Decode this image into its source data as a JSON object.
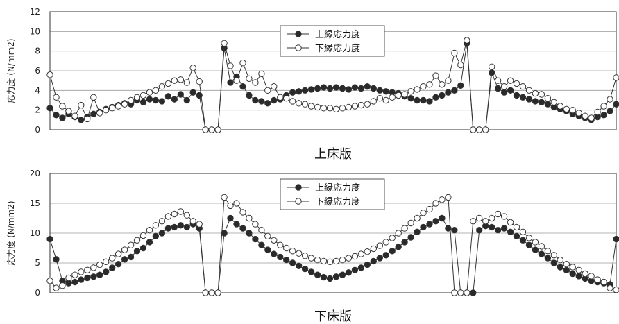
{
  "chart_data": [
    {
      "type": "line",
      "title": "上床版",
      "ylabel": "応力度 (N/mm2)",
      "ylim": [
        0,
        12
      ],
      "yticks": [
        "0",
        "2",
        "4",
        "6",
        "8",
        "10",
        "12"
      ],
      "grid": true,
      "legend": {
        "placement": "top-center",
        "entries": [
          "上縁応力度",
          "下縁応力度"
        ]
      },
      "series": [
        {
          "name": "上縁応力度",
          "marker": "filled",
          "values": [
            2.2,
            1.5,
            1.2,
            1.6,
            1.3,
            1.0,
            1.3,
            1.6,
            1.8,
            2.1,
            2.3,
            2.5,
            2.7,
            2.6,
            3.0,
            2.8,
            3.1,
            3.0,
            2.9,
            3.4,
            3.1,
            3.6,
            3.0,
            3.8,
            3.5,
            0,
            0,
            0,
            8.3,
            4.8,
            5.4,
            4.4,
            3.5,
            3.0,
            2.9,
            2.7,
            3.0,
            3.1,
            3.5,
            3.8,
            3.9,
            4.0,
            4.1,
            4.2,
            4.3,
            4.2,
            4.3,
            4.2,
            4.1,
            4.3,
            4.2,
            4.4,
            4.2,
            4.0,
            3.9,
            3.8,
            3.7,
            3.4,
            3.2,
            3.0,
            3.0,
            2.9,
            3.3,
            3.5,
            3.8,
            4.0,
            4.5,
            8.8,
            0,
            0,
            0,
            5.8,
            4.2,
            3.8,
            4.0,
            3.5,
            3.3,
            3.1,
            2.9,
            2.8,
            2.6,
            2.3,
            2.1,
            1.9,
            1.6,
            1.4,
            1.2,
            1.0,
            1.3,
            1.5,
            1.9,
            2.6
          ]
        },
        {
          "name": "下縁応力度",
          "marker": "open",
          "values": [
            5.6,
            3.3,
            2.4,
            1.9,
            1.4,
            2.5,
            1.1,
            3.3,
            1.7,
            2.0,
            2.2,
            2.4,
            2.6,
            3.0,
            3.3,
            3.5,
            3.8,
            4.0,
            4.4,
            4.7,
            5.0,
            5.1,
            4.8,
            6.3,
            4.9,
            0,
            0,
            0,
            8.8,
            6.5,
            5.0,
            6.8,
            5.2,
            4.8,
            5.7,
            4.0,
            4.4,
            3.3,
            3.2,
            2.9,
            2.7,
            2.6,
            2.4,
            2.3,
            2.2,
            2.2,
            2.1,
            2.2,
            2.3,
            2.4,
            2.5,
            2.6,
            2.9,
            3.2,
            3.0,
            3.3,
            3.5,
            3.6,
            3.9,
            4.1,
            4.4,
            4.6,
            5.5,
            4.6,
            5.0,
            7.8,
            6.6,
            9.1,
            0,
            0,
            0,
            6.4,
            5.0,
            4.4,
            5.0,
            4.7,
            4.4,
            4.0,
            3.7,
            3.6,
            3.2,
            2.8,
            2.4,
            2.1,
            2.0,
            1.7,
            1.4,
            1.2,
            1.8,
            2.4,
            3.1,
            5.3
          ]
        }
      ]
    },
    {
      "type": "line",
      "title": "下床版",
      "ylabel": "応力度 (N/mm2)",
      "ylim": [
        0,
        20
      ],
      "yticks": [
        "0",
        "5",
        "10",
        "15",
        "20"
      ],
      "grid": true,
      "legend": {
        "placement": "top-center",
        "entries": [
          "上縁応力度",
          "下縁応力度"
        ]
      },
      "series": [
        {
          "name": "上縁応力度",
          "marker": "filled",
          "values": [
            9.0,
            5.6,
            2.0,
            1.6,
            1.8,
            2.2,
            2.5,
            2.7,
            3.0,
            3.5,
            4.2,
            4.8,
            5.6,
            6.0,
            7.0,
            7.5,
            8.5,
            9.5,
            10.0,
            10.8,
            11.0,
            11.3,
            11.0,
            11.5,
            10.8,
            0,
            0,
            0,
            10.0,
            12.5,
            11.5,
            10.8,
            10.0,
            9.0,
            8.0,
            7.2,
            6.5,
            6.0,
            5.5,
            5.0,
            4.5,
            4.0,
            3.5,
            3.0,
            2.6,
            2.4,
            2.7,
            3.0,
            3.4,
            3.8,
            4.2,
            4.7,
            5.3,
            5.8,
            6.3,
            7.0,
            7.7,
            8.5,
            9.3,
            10.2,
            11.0,
            11.5,
            12.0,
            12.5,
            10.8,
            10.5,
            0,
            0,
            0,
            10.5,
            11.2,
            11.0,
            10.5,
            10.8,
            10.2,
            9.5,
            8.8,
            8.0,
            7.2,
            6.5,
            5.8,
            5.0,
            4.3,
            3.8,
            3.2,
            2.8,
            2.4,
            2.0,
            1.8,
            1.6,
            1.4,
            9.0
          ]
        },
        {
          "name": "下縁応力度",
          "marker": "open",
          "values": [
            2.0,
            0.8,
            1.2,
            2.5,
            3.0,
            3.5,
            3.8,
            4.2,
            4.7,
            5.2,
            5.8,
            6.5,
            7.2,
            8.0,
            8.8,
            9.6,
            10.5,
            11.3,
            12.0,
            12.8,
            13.2,
            13.6,
            13.0,
            12.0,
            11.5,
            0,
            0,
            0,
            16.0,
            14.6,
            15.0,
            13.5,
            12.5,
            11.5,
            10.5,
            9.5,
            8.8,
            8.0,
            7.5,
            7.0,
            6.6,
            6.2,
            5.8,
            5.5,
            5.3,
            5.2,
            5.3,
            5.5,
            5.8,
            6.1,
            6.5,
            6.9,
            7.4,
            7.9,
            8.5,
            9.2,
            10.0,
            10.8,
            11.7,
            12.5,
            13.4,
            14.0,
            15.0,
            15.6,
            16.0,
            0,
            0,
            0,
            12.0,
            12.5,
            12.0,
            12.5,
            13.2,
            12.8,
            11.8,
            11.0,
            10.2,
            9.2,
            8.5,
            7.8,
            7.0,
            6.3,
            5.5,
            4.8,
            4.3,
            3.8,
            3.2,
            2.8,
            2.2,
            1.8,
            0.8,
            0.5
          ]
        }
      ]
    }
  ]
}
